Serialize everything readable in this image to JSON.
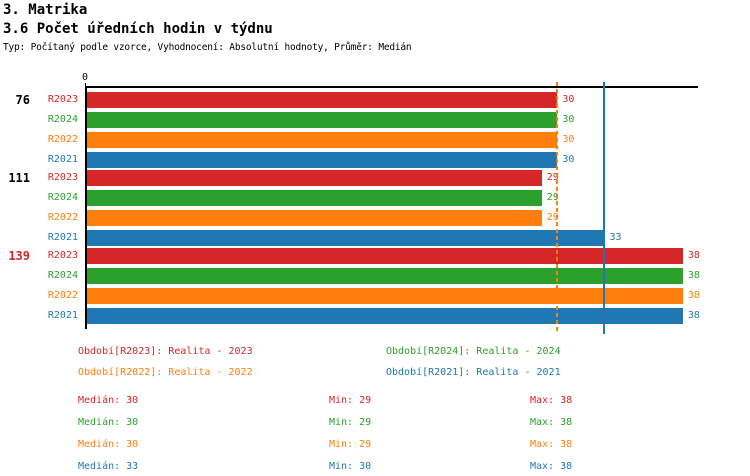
{
  "header": {
    "title": "3. Matrika",
    "subtitle": "3.6 Počet úředních hodin v týdnu",
    "description": "Typ: Počítaný podle vzorce, Vyhodnocení: Absolutní hodnoty, Průměr: Medián"
  },
  "palette": {
    "red": "#d62728",
    "green": "#2ca02c",
    "orange": "#ff7f0e",
    "blue": "#1f77b4",
    "axis": "#000000"
  },
  "chart_data": {
    "type": "bar",
    "orientation": "horizontal",
    "axis_origin_label": "0",
    "xlim": [
      0,
      39
    ],
    "grid": false,
    "categories": [
      "76",
      "111",
      "139"
    ],
    "category_label_colors": [
      "#000000",
      "#000000",
      "#d62728"
    ],
    "series": [
      {
        "name": "R2023",
        "color": "#d62728",
        "values": [
          30,
          29,
          38
        ]
      },
      {
        "name": "R2024",
        "color": "#2ca02c",
        "values": [
          30,
          29,
          38
        ]
      },
      {
        "name": "R2022",
        "color": "#ff7f0e",
        "values": [
          30,
          29,
          38
        ]
      },
      {
        "name": "R2021",
        "color": "#1f77b4",
        "values": [
          30,
          33,
          38
        ]
      }
    ],
    "reference_lines": [
      {
        "value": 30,
        "color": "#ff7f0e",
        "style": "dashed"
      },
      {
        "value": 33,
        "color": "#1f77b4",
        "style": "solid"
      }
    ]
  },
  "legend": {
    "items": [
      {
        "label": "Období[R2023]: Realita - 2023",
        "color": "#d62728"
      },
      {
        "label": "Období[R2024]: Realita - 2024",
        "color": "#2ca02c"
      },
      {
        "label": "Období[R2022]: Realita - 2022",
        "color": "#ff7f0e"
      },
      {
        "label": "Období[R2021]: Realita - 2021",
        "color": "#1f77b4"
      }
    ]
  },
  "stats": {
    "rows": [
      {
        "color": "#d62728",
        "median": "Medián: 30",
        "min": "Min: 29",
        "max": "Max: 38"
      },
      {
        "color": "#2ca02c",
        "median": "Medián: 30",
        "min": "Min: 29",
        "max": "Max: 38"
      },
      {
        "color": "#ff7f0e",
        "median": "Medián: 30",
        "min": "Min: 29",
        "max": "Max: 38"
      },
      {
        "color": "#1f77b4",
        "median": "Medián: 33",
        "min": "Min: 30",
        "max": "Max: 38"
      }
    ]
  }
}
